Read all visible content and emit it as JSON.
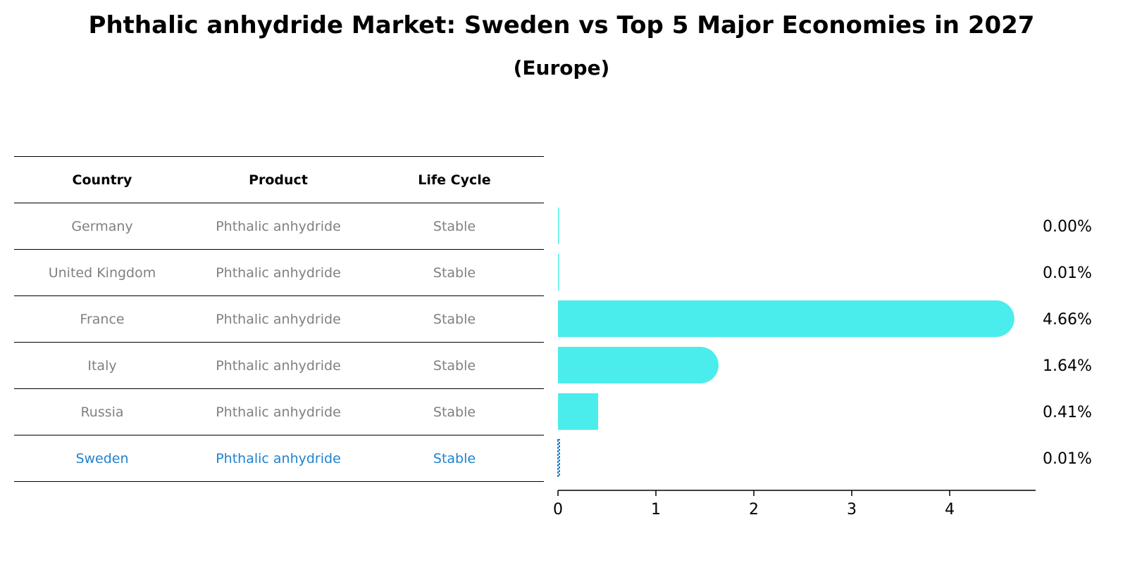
{
  "title": "Phthalic anhydride Market: Sweden vs Top 5 Major Economies in 2027",
  "subtitle": "(Europe)",
  "table": {
    "headers": [
      "Country",
      "Product",
      "Life Cycle"
    ],
    "rows": [
      [
        "Germany",
        "Phthalic anhydride",
        "Stable"
      ],
      [
        "United Kingdom",
        "Phthalic anhydride",
        "Stable"
      ],
      [
        "France",
        "Phthalic anhydride",
        "Stable"
      ],
      [
        "Italy",
        "Phthalic anhydride",
        "Stable"
      ],
      [
        "Russia",
        "Phthalic anhydride",
        "Stable"
      ],
      [
        "Sweden",
        "Phthalic anhydride",
        "Stable"
      ]
    ],
    "highlight_row": "Sweden"
  },
  "chart_data": {
    "type": "bar",
    "orientation": "horizontal",
    "categories": [
      "Germany",
      "United Kingdom",
      "France",
      "Italy",
      "Russia",
      "Sweden"
    ],
    "values": [
      0.0,
      0.01,
      4.66,
      1.64,
      0.41,
      0.01
    ],
    "value_labels": [
      "0.00%",
      "0.01%",
      "4.66%",
      "1.64%",
      "0.41%",
      "0.01%"
    ],
    "xticks": [
      "0",
      "1",
      "2",
      "3",
      "4"
    ],
    "xlim": [
      0,
      4.9
    ],
    "bar_color": "#4bedec",
    "highlight_color": "#1f83cf",
    "highlight_category": "Sweden",
    "grid": false
  }
}
